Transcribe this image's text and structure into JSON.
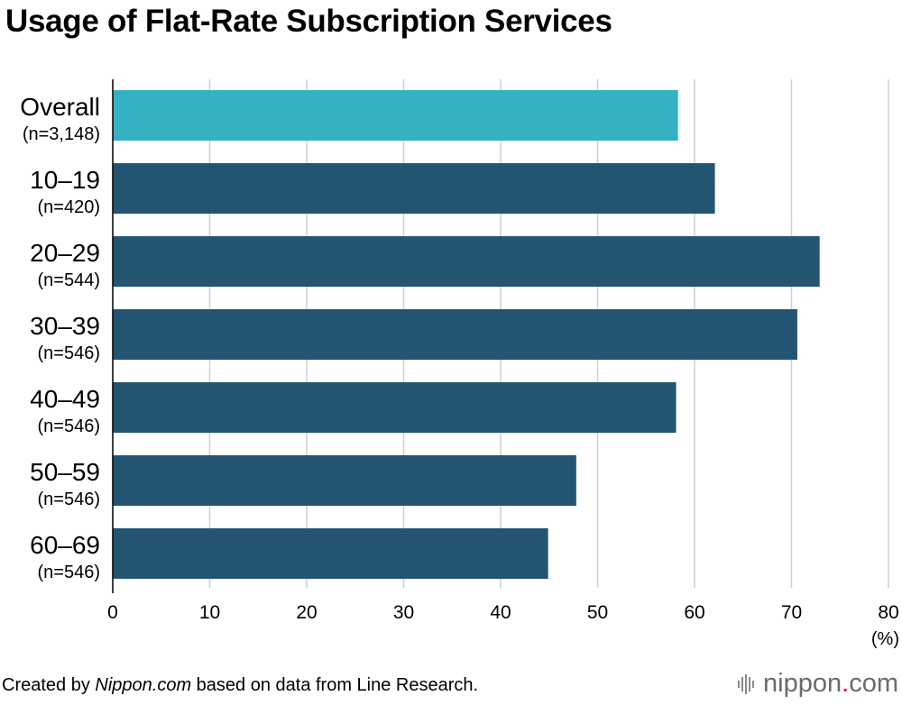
{
  "chart_data": {
    "type": "bar",
    "orientation": "horizontal",
    "title": "Usage of Flat-Rate Subscription Services",
    "categories": [
      {
        "label": "Overall",
        "n": "(n=3,148)"
      },
      {
        "label": "10–19",
        "n": "(n=420)"
      },
      {
        "label": "20–29",
        "n": "(n=544)"
      },
      {
        "label": "30–39",
        "n": "(n=546)"
      },
      {
        "label": "40–49",
        "n": "(n=546)"
      },
      {
        "label": "50–59",
        "n": "(n=546)"
      },
      {
        "label": "60–69",
        "n": "(n=546)"
      }
    ],
    "values": [
      58.3,
      62.1,
      72.9,
      70.6,
      58.1,
      47.8,
      44.9
    ],
    "xlim": [
      0,
      80
    ],
    "xticks": [
      0,
      10,
      20,
      30,
      40,
      50,
      60,
      70,
      80
    ],
    "unit_label": "(%)",
    "grid": true,
    "colors": {
      "highlight": "#35b2c1",
      "bar": "#235572",
      "grid": "#cfcfcf",
      "axis": "#000000"
    }
  },
  "footer": {
    "credit_prefix": "Created by ",
    "credit_source": "Nippon.com",
    "credit_suffix": " based on data from Line Research.",
    "brand_main": "nippon",
    "brand_dot": ".",
    "brand_tld": "com",
    "brand_icon": "nippon-logo-icon"
  }
}
